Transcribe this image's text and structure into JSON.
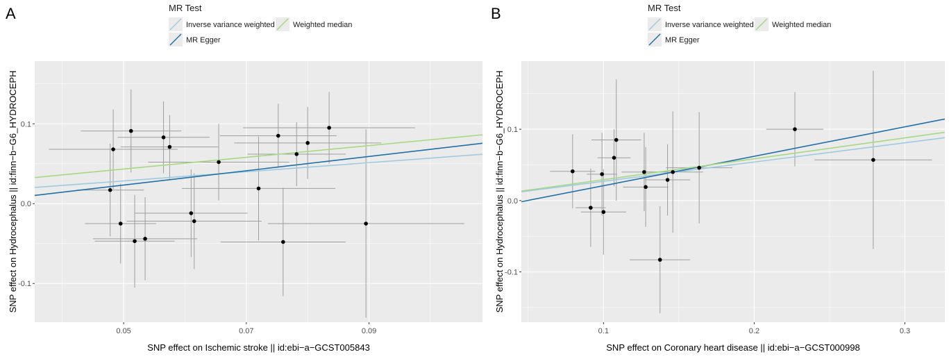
{
  "chart_data": [
    {
      "panel": "A",
      "type": "scatter",
      "legend_title": "MR Test",
      "legend_position": "top",
      "grid": true,
      "xlabel": "SNP effect on Ischemic stroke || id:ebi−a−GCST005843",
      "ylabel": "SNP effect on Hydrocephalus || id:finn−b−G6_HYDROCEPH",
      "xlim": [
        0.0355,
        0.1085
      ],
      "ylim": [
        -0.1485,
        0.1785
      ],
      "xticks": [
        0.05,
        0.07,
        0.09
      ],
      "xtick_labels": [
        "0.05",
        "0.07",
        "0.09"
      ],
      "yticks": [
        -0.1,
        0.0,
        0.1
      ],
      "ytick_labels": [
        "-0.1",
        "0.0",
        "0.1"
      ],
      "points": [
        {
          "x": 0.0478,
          "y": 0.017,
          "xerr": 0.0055,
          "yerr": 0.058
        },
        {
          "x": 0.0483,
          "y": 0.068,
          "xerr": 0.0105,
          "yerr": 0.05
        },
        {
          "x": 0.0495,
          "y": -0.025,
          "xerr": 0.0058,
          "yerr": 0.05
        },
        {
          "x": 0.0512,
          "y": 0.091,
          "xerr": 0.0082,
          "yerr": 0.052
        },
        {
          "x": 0.0518,
          "y": -0.047,
          "xerr": 0.0065,
          "yerr": 0.058
        },
        {
          "x": 0.0535,
          "y": -0.044,
          "xerr": 0.0085,
          "yerr": 0.052
        },
        {
          "x": 0.0565,
          "y": 0.083,
          "xerr": 0.0075,
          "yerr": 0.045
        },
        {
          "x": 0.0575,
          "y": 0.071,
          "xerr": 0.008,
          "yerr": 0.04
        },
        {
          "x": 0.061,
          "y": -0.012,
          "xerr": 0.0092,
          "yerr": 0.055
        },
        {
          "x": 0.0615,
          "y": -0.022,
          "xerr": 0.011,
          "yerr": 0.06
        },
        {
          "x": 0.0655,
          "y": 0.052,
          "xerr": 0.0115,
          "yerr": 0.048
        },
        {
          "x": 0.072,
          "y": 0.019,
          "xerr": 0.0125,
          "yerr": 0.065
        },
        {
          "x": 0.0752,
          "y": 0.085,
          "xerr": 0.0095,
          "yerr": 0.04
        },
        {
          "x": 0.076,
          "y": -0.048,
          "xerr": 0.0102,
          "yerr": 0.068
        },
        {
          "x": 0.0782,
          "y": 0.062,
          "xerr": 0.008,
          "yerr": 0.04
        },
        {
          "x": 0.08,
          "y": 0.076,
          "xerr": 0.012,
          "yerr": 0.045
        },
        {
          "x": 0.0835,
          "y": 0.095,
          "xerr": 0.014,
          "yerr": 0.045
        },
        {
          "x": 0.0895,
          "y": -0.025,
          "xerr": 0.016,
          "yerr": 0.118
        }
      ],
      "series": [
        {
          "name": "Inverse variance weighted",
          "color": "#9ecae1",
          "intercept": 0.0,
          "slope": 0.57
        },
        {
          "name": "MR Egger",
          "color": "#1f6fa8",
          "intercept": -0.0215,
          "slope": 0.8952
        },
        {
          "name": "Weighted median",
          "color": "#a6d97f",
          "intercept": 0.00665,
          "slope": 0.7333
        }
      ]
    },
    {
      "panel": "B",
      "type": "scatter",
      "legend_title": "MR Test",
      "legend_position": "top",
      "grid": true,
      "xlabel": "SNP effect on Coronary heart disease || id:ebi−a−GCST000998",
      "ylabel": "SNP effect on Hydrocephalus || id:finn−b−G6_HYDROCEPH",
      "xlim": [
        0.0455,
        0.3265
      ],
      "ylim": [
        -0.1705,
        0.1955
      ],
      "xticks": [
        0.1,
        0.2,
        0.3
      ],
      "xtick_labels": [
        "0.1",
        "0.2",
        "0.3"
      ],
      "yticks": [
        -0.1,
        0.0,
        0.1
      ],
      "ytick_labels": [
        "-0.1",
        "0.0",
        "0.1"
      ],
      "points": [
        {
          "x": 0.0795,
          "y": 0.041,
          "xerr": 0.015,
          "yerr": 0.052
        },
        {
          "x": 0.0915,
          "y": -0.01,
          "xerr": 0.01,
          "yerr": 0.055
        },
        {
          "x": 0.099,
          "y": 0.037,
          "xerr": 0.01,
          "yerr": 0.058
        },
        {
          "x": 0.1,
          "y": -0.016,
          "xerr": 0.015,
          "yerr": 0.06
        },
        {
          "x": 0.107,
          "y": 0.06,
          "xerr": 0.011,
          "yerr": 0.04
        },
        {
          "x": 0.1085,
          "y": 0.085,
          "xerr": 0.0165,
          "yerr": 0.085
        },
        {
          "x": 0.127,
          "y": 0.04,
          "xerr": 0.015,
          "yerr": 0.055
        },
        {
          "x": 0.128,
          "y": 0.019,
          "xerr": 0.015,
          "yerr": 0.056
        },
        {
          "x": 0.1375,
          "y": -0.083,
          "xerr": 0.02,
          "yerr": 0.075
        },
        {
          "x": 0.1425,
          "y": 0.029,
          "xerr": 0.015,
          "yerr": 0.05
        },
        {
          "x": 0.146,
          "y": 0.04,
          "xerr": 0.02,
          "yerr": 0.085
        },
        {
          "x": 0.1635,
          "y": 0.046,
          "xerr": 0.022,
          "yerr": 0.078
        },
        {
          "x": 0.227,
          "y": 0.1,
          "xerr": 0.019,
          "yerr": 0.052
        },
        {
          "x": 0.279,
          "y": 0.057,
          "xerr": 0.039,
          "yerr": 0.125
        }
      ],
      "series": [
        {
          "name": "Inverse variance weighted",
          "color": "#9ecae1",
          "intercept": 0.0,
          "slope": 0.27
        },
        {
          "name": "MR Egger",
          "color": "#1f6fa8",
          "intercept": -0.0204,
          "slope": 0.4125
        },
        {
          "name": "Weighted median",
          "color": "#a6d97f",
          "intercept": 0.0,
          "slope": 0.293
        }
      ]
    }
  ]
}
